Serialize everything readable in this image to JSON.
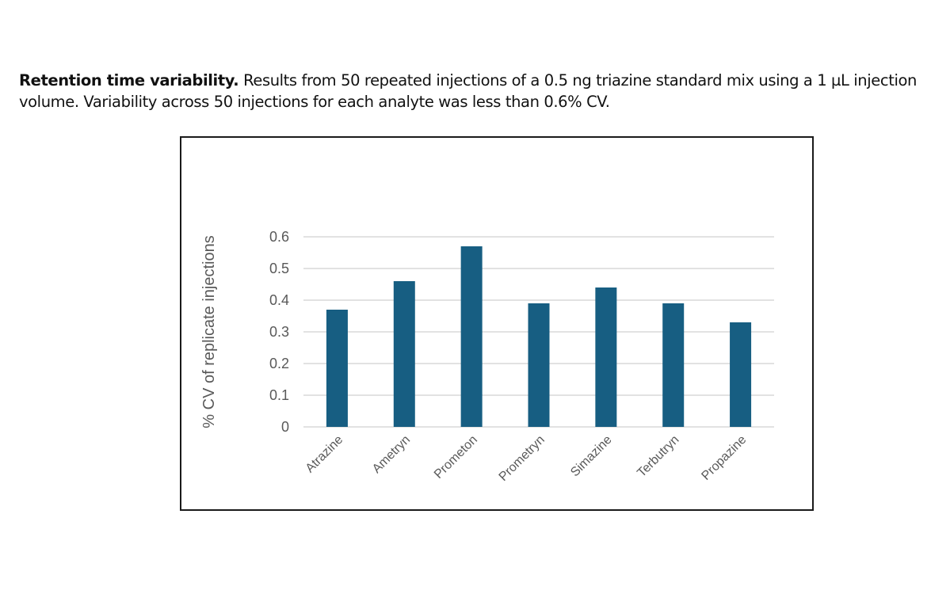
{
  "caption": {
    "bold": "Retention time variability.",
    "text": " Results from 50 repeated injections of a 0.5 ng triazine standard mix using a 1 µL injection volume. Variability across 50 injections for each analyte was less than 0.6% CV."
  },
  "chart_data": {
    "type": "bar",
    "title": "",
    "xlabel": "",
    "ylabel": "% CV of replicate injections",
    "categories": [
      "Atrazine",
      "Ametryn",
      "Prometon",
      "Prometryn",
      "Simazine",
      "Terbutryn",
      "Propazine"
    ],
    "values": [
      0.37,
      0.46,
      0.57,
      0.39,
      0.44,
      0.39,
      0.33
    ],
    "ylim": [
      0,
      0.6
    ],
    "yticks": [
      "0",
      "0.1",
      "0.2",
      "0.3",
      "0.4",
      "0.5",
      "0.6"
    ],
    "grid": true,
    "legend": "none",
    "bar_color": "#175e82",
    "grid_color": "#d9d9d9"
  }
}
